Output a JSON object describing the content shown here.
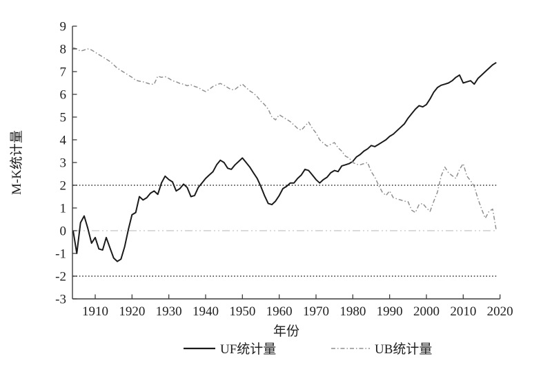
{
  "figure": {
    "background": "#ffffff",
    "x_axis_title": "年份",
    "y_axis_title": "M-K统计量",
    "legend": [
      {
        "label": "UF统计量",
        "swatch": "solid-line"
      },
      {
        "label": "UB统计量",
        "swatch": "dash-dot-line"
      }
    ]
  },
  "colors": {
    "uf_line": "#1a1a1a",
    "ub_line": "#8f8f8f",
    "critical_line": "#2f2f2f",
    "zero_line": "#c3c3c3",
    "axis": "#3c3c3c",
    "text": "#1f1f1f"
  },
  "chart_data": {
    "type": "line",
    "xlabel": "年份",
    "ylabel": "M-K统计量",
    "xlim": [
      1903.8,
      2020.2
    ],
    "ylim": [
      -3,
      9
    ],
    "xticks": [
      1910,
      1920,
      1930,
      1940,
      1950,
      1960,
      1970,
      1980,
      1990,
      2000,
      2010,
      2020
    ],
    "yticks": [
      -3,
      -2,
      -1,
      0,
      1,
      2,
      3,
      4,
      5,
      6,
      7,
      8,
      9
    ],
    "grid": false,
    "legend_position": "bottom-center",
    "ref_lines": {
      "critical_values": [
        2,
        -2
      ],
      "zero": 0
    },
    "x": {
      "start": 1904,
      "step": 1,
      "count": 116
    },
    "series": [
      {
        "name": "UF统计量",
        "style": "solid",
        "values": [
          0.0,
          -1.0,
          0.35,
          0.65,
          0.1,
          -0.55,
          -0.3,
          -0.8,
          -0.85,
          -0.3,
          -0.75,
          -1.2,
          -1.35,
          -1.25,
          -0.7,
          0.05,
          0.7,
          0.8,
          1.5,
          1.35,
          1.45,
          1.65,
          1.75,
          1.6,
          2.1,
          2.4,
          2.25,
          2.15,
          1.75,
          1.85,
          2.05,
          1.9,
          1.5,
          1.55,
          1.9,
          2.1,
          2.3,
          2.45,
          2.6,
          2.9,
          3.1,
          3.0,
          2.75,
          2.7,
          2.9,
          3.05,
          3.2,
          3.0,
          2.8,
          2.55,
          2.3,
          1.95,
          1.55,
          1.2,
          1.15,
          1.3,
          1.55,
          1.85,
          1.95,
          2.1,
          2.1,
          2.3,
          2.45,
          2.7,
          2.65,
          2.45,
          2.25,
          2.1,
          2.25,
          2.35,
          2.55,
          2.65,
          2.6,
          2.85,
          2.9,
          2.95,
          3.05,
          3.25,
          3.35,
          3.5,
          3.6,
          3.75,
          3.7,
          3.8,
          3.9,
          4.0,
          4.15,
          4.25,
          4.4,
          4.55,
          4.7,
          4.95,
          5.15,
          5.35,
          5.5,
          5.45,
          5.55,
          5.8,
          6.1,
          6.3,
          6.4,
          6.45,
          6.5,
          6.6,
          6.75,
          6.85,
          6.5,
          6.55,
          6.6,
          6.45,
          6.7,
          6.85,
          7.0,
          7.15,
          7.3,
          7.4
        ]
      },
      {
        "name": "UB统计量",
        "style": "dash-dot",
        "values": [
          8.05,
          8.0,
          7.9,
          7.95,
          8.0,
          7.95,
          7.85,
          7.75,
          7.65,
          7.55,
          7.45,
          7.3,
          7.15,
          7.05,
          6.95,
          6.85,
          6.75,
          6.62,
          6.58,
          6.55,
          6.5,
          6.45,
          6.45,
          6.8,
          6.75,
          6.78,
          6.7,
          6.6,
          6.55,
          6.48,
          6.45,
          6.38,
          6.42,
          6.35,
          6.3,
          6.2,
          6.12,
          6.22,
          6.35,
          6.42,
          6.48,
          6.4,
          6.3,
          6.2,
          6.22,
          6.35,
          6.45,
          6.3,
          6.15,
          6.05,
          5.9,
          5.7,
          5.55,
          5.35,
          5.0,
          4.88,
          5.1,
          5.0,
          4.9,
          4.8,
          4.65,
          4.5,
          4.42,
          4.6,
          4.78,
          4.5,
          4.3,
          4.0,
          3.85,
          3.72,
          3.8,
          3.88,
          3.65,
          3.5,
          3.28,
          3.2,
          3.0,
          2.92,
          2.9,
          2.95,
          3.0,
          2.6,
          2.35,
          2.0,
          1.7,
          1.55,
          1.75,
          1.45,
          1.4,
          1.35,
          1.3,
          1.28,
          0.9,
          0.8,
          1.15,
          1.2,
          1.0,
          0.85,
          1.3,
          1.7,
          2.4,
          2.8,
          2.55,
          2.42,
          2.3,
          2.7,
          2.95,
          2.4,
          2.2,
          1.95,
          1.4,
          0.95,
          0.55,
          0.85,
          0.95,
          0.0
        ]
      }
    ]
  }
}
